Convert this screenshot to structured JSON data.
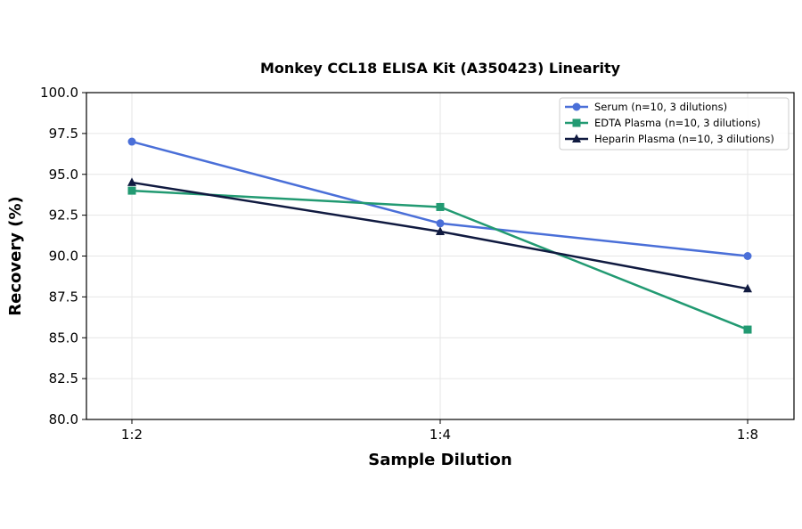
{
  "chart_data": {
    "type": "line",
    "title": "Monkey CCL18 ELISA Kit (A350423) Linearity",
    "xlabel": "Sample Dilution",
    "ylabel": "Recovery (%)",
    "categories": [
      "1:2",
      "1:4",
      "1:8"
    ],
    "ylim": [
      80.0,
      100.0
    ],
    "yticks": [
      "80.0",
      "82.5",
      "85.0",
      "87.5",
      "90.0",
      "92.5",
      "95.0",
      "97.5",
      "100.0"
    ],
    "grid": true,
    "legend_position": "top-right",
    "series": [
      {
        "name": "Serum (n=10, 3 dilutions)",
        "values": [
          97.0,
          92.0,
          90.0
        ],
        "color": "#4a6fd8",
        "marker": "circle"
      },
      {
        "name": "EDTA Plasma (n=10, 3 dilutions)",
        "values": [
          94.0,
          93.0,
          85.5
        ],
        "color": "#229a72",
        "marker": "square"
      },
      {
        "name": "Heparin Plasma (n=10, 3 dilutions)",
        "values": [
          94.5,
          91.5,
          88.0
        ],
        "color": "#101a40",
        "marker": "triangle"
      }
    ]
  }
}
